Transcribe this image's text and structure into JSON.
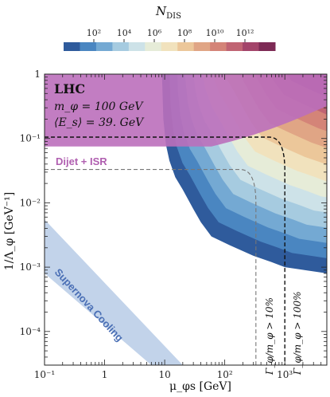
{
  "chart_data": {
    "type": "heatmap",
    "xlabel": "μ_φs [GeV]",
    "ylabel": "1/Λ_φ [GeV⁻¹]",
    "xscale": "log",
    "yscale": "log",
    "xlim": [
      0.1,
      5000
    ],
    "ylim": [
      3e-05,
      1
    ],
    "x_ticks": [
      {
        "v": 0.1,
        "label": "10⁻¹"
      },
      {
        "v": 1,
        "label": "1"
      },
      {
        "v": 10,
        "label": "10"
      },
      {
        "v": 100,
        "label": "10²"
      },
      {
        "v": 1000,
        "label": "10³"
      }
    ],
    "y_ticks": [
      {
        "v": 0.0001,
        "label": "10⁻⁴"
      },
      {
        "v": 0.001,
        "label": "10⁻³"
      },
      {
        "v": 0.01,
        "label": "10⁻²"
      },
      {
        "v": 0.1,
        "label": "10⁻¹"
      },
      {
        "v": 1,
        "label": "1"
      }
    ],
    "colorbar": {
      "title": "N_DIS",
      "log10_min": 0,
      "log10_max": 14,
      "ticks": [
        {
          "v": 2,
          "label": "10²"
        },
        {
          "v": 4,
          "label": "10⁴"
        },
        {
          "v": 6,
          "label": "10⁶"
        },
        {
          "v": 8,
          "label": "10⁸"
        },
        {
          "v": 10,
          "label": "10¹⁰"
        },
        {
          "v": 12,
          "label": "10¹²"
        }
      ],
      "colors": [
        "#2f5b9c",
        "#4a86c1",
        "#74a9d3",
        "#a6cbe0",
        "#cde2e8",
        "#e6ecd8",
        "#f1e2bd",
        "#ecc79a",
        "#e0a585",
        "#d48478",
        "#c06473",
        "#a3446a",
        "#7d2a55"
      ]
    },
    "contour_boundary": [
      [
        5000,
        0.0008
      ],
      [
        1000,
        0.001
      ],
      [
        600,
        0.0012
      ],
      [
        300,
        0.0015
      ],
      [
        120,
        0.0022
      ],
      [
        60,
        0.003
      ],
      [
        40,
        0.005
      ],
      [
        30,
        0.008
      ],
      [
        20,
        0.016
      ],
      [
        15,
        0.025
      ],
      [
        12,
        0.045
      ],
      [
        10.5,
        0.08
      ],
      [
        9.5,
        0.2
      ],
      [
        9,
        1
      ]
    ],
    "lhc_region": {
      "label": "LHC",
      "m_phi": "m_φ = 100 GeV",
      "E_s": "⟨E_s⟩ = 39. GeV",
      "y_lower": 0.075,
      "x_upper": 5000,
      "color": "#bb6fbb"
    },
    "dijet_isr": {
      "label": "Dijet + ISR",
      "color": "#b05fb0",
      "boundary": [
        [
          0.1,
          0.12
        ],
        [
          20,
          0.12
        ],
        [
          60,
          0.07
        ],
        [
          150,
          0.035
        ],
        [
          400,
          0.015
        ],
        [
          5000,
          0.015
        ]
      ]
    },
    "width_lines": [
      {
        "label": "Γ_φ/m_φ > 100%",
        "style": "dashed",
        "color": "#111111",
        "y_plateau": 0.105,
        "x_vertical": 1000
      },
      {
        "label": "Γ_φ/m_φ > 10%",
        "style": "dashed",
        "color": "#777777",
        "y_plateau": 0.033,
        "x_vertical": 330
      }
    ],
    "supernova_band": {
      "label": "Supernova Cooling",
      "color": "#c2d3ea",
      "polygon": [
        [
          0.1,
          0.0055
        ],
        [
          0.1,
          0.0008
        ],
        [
          6,
          3e-05
        ],
        [
          20,
          3e-05
        ]
      ]
    }
  }
}
